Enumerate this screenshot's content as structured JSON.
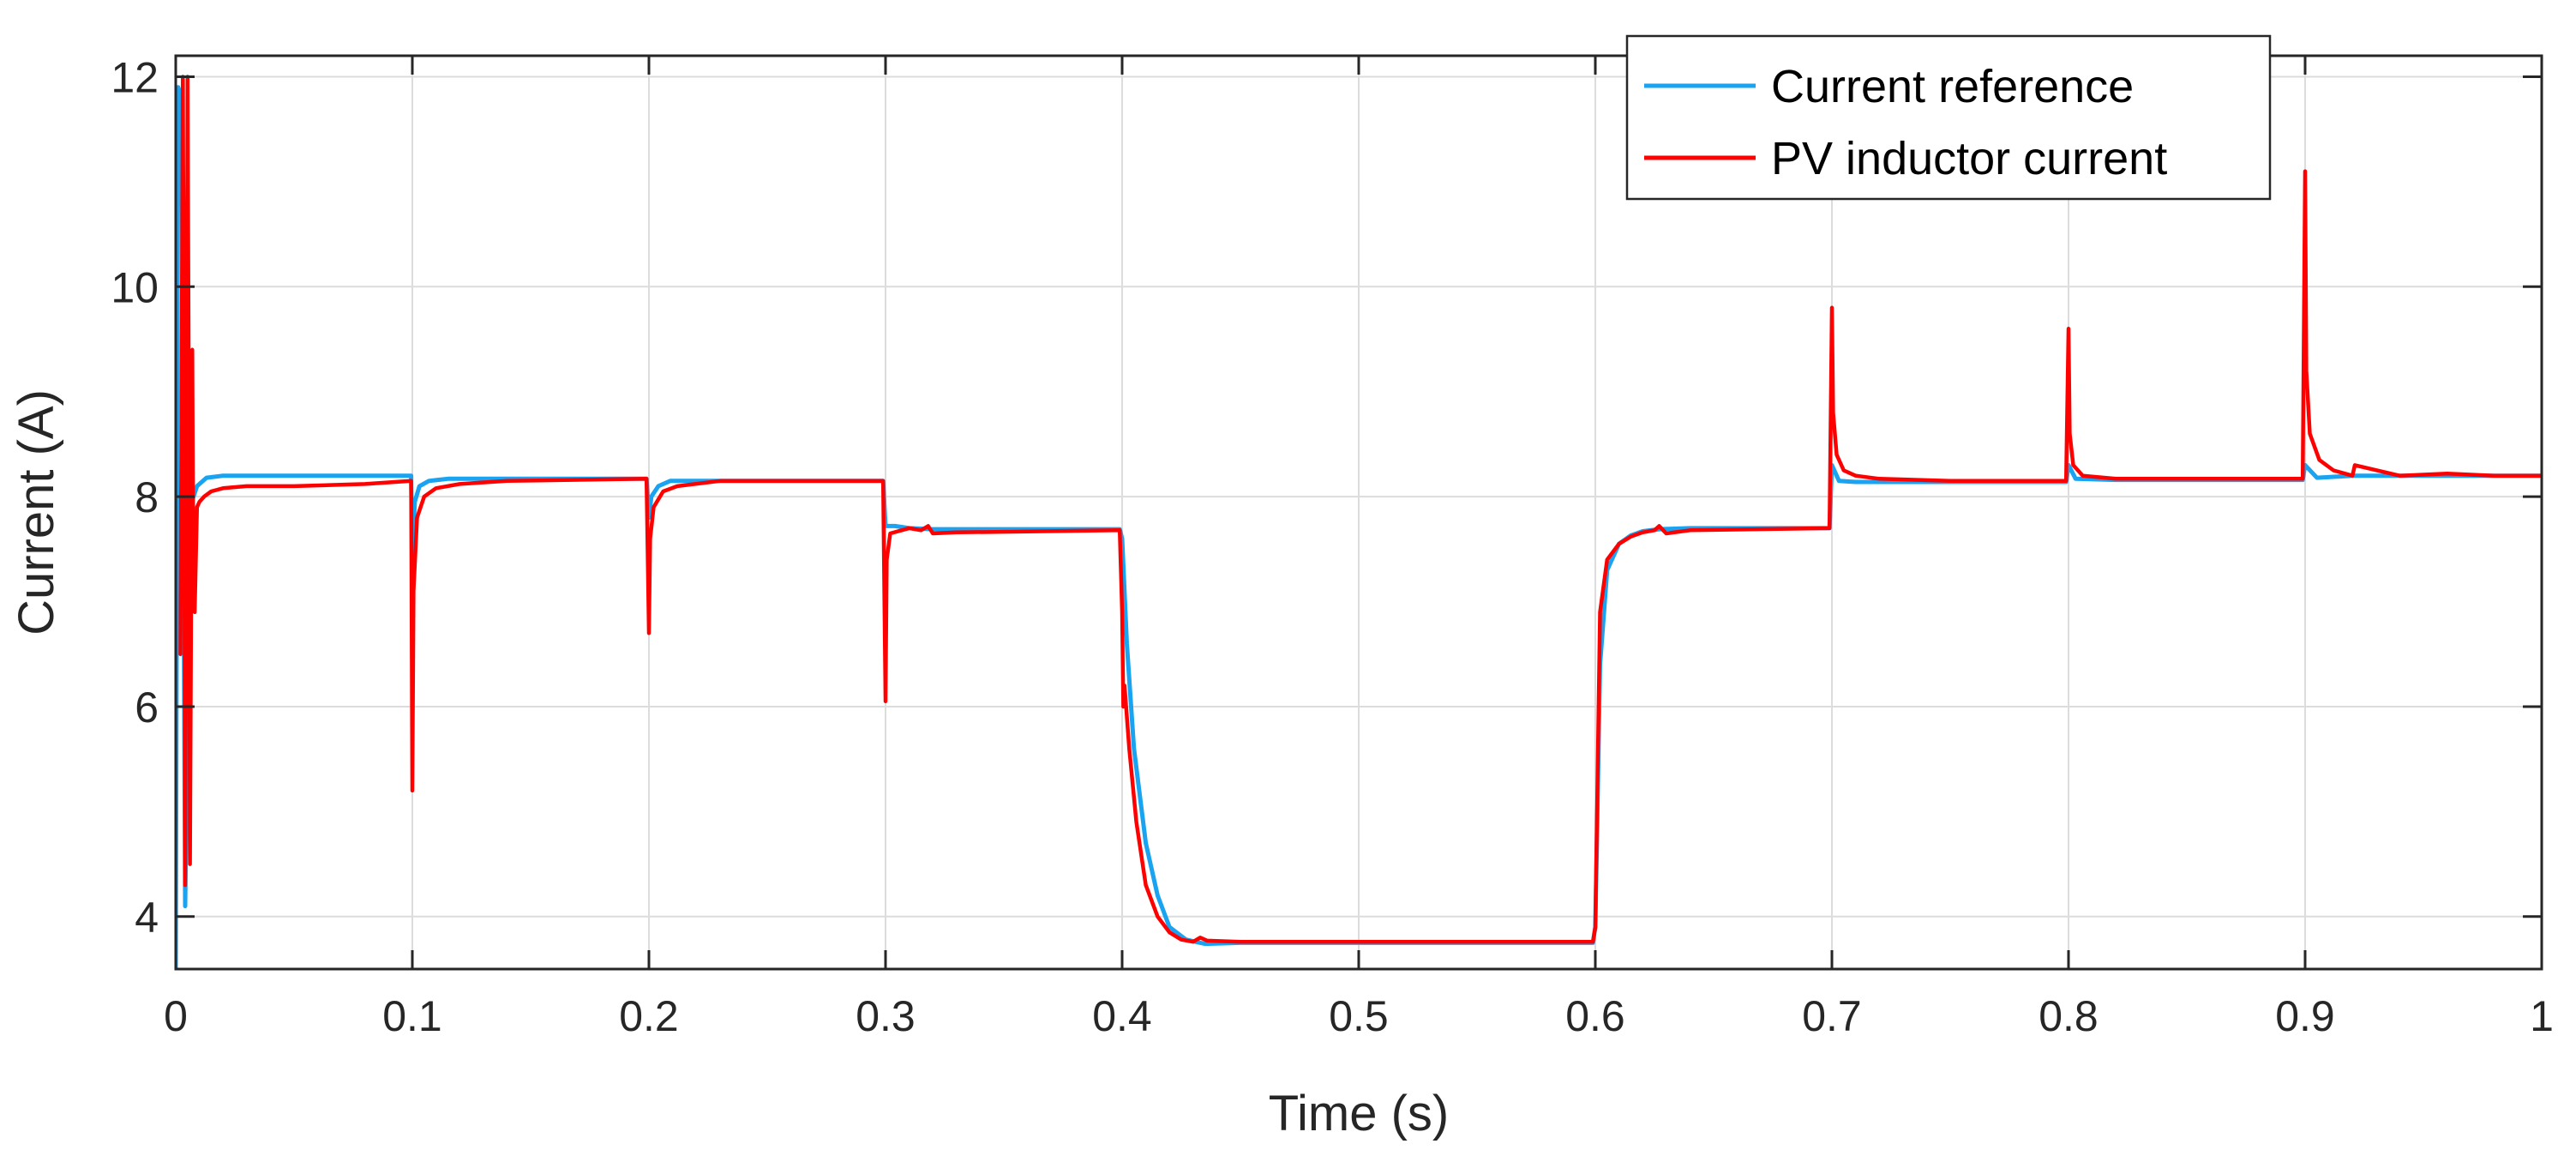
{
  "chart_data": {
    "type": "line",
    "title": "",
    "xlabel": "Time (s)",
    "ylabel": "Current (A)",
    "xlim": [
      0,
      1
    ],
    "ylim": [
      3.5,
      12.2
    ],
    "grid": true,
    "legend_position": "top-right",
    "xticks": [
      0,
      0.1,
      0.2,
      0.3,
      0.4,
      0.5,
      0.6,
      0.7,
      0.8,
      0.9,
      1
    ],
    "xtick_labels": [
      "0",
      "0.1",
      "0.2",
      "0.3",
      "0.4",
      "0.5",
      "0.6",
      "0.7",
      "0.8",
      "0.9",
      "1"
    ],
    "yticks": [
      4,
      6,
      8,
      10,
      12
    ],
    "ytick_labels": [
      "4",
      "6",
      "8",
      "10",
      "12"
    ],
    "colors": {
      "axes": "#262626",
      "grid": "#dcdcdc",
      "current_reference": "#1aa3f0",
      "pv_inductor_current": "#ff0000"
    },
    "series": [
      {
        "name": "Current reference",
        "color_key": "current_reference",
        "x": [
          0,
          0.001,
          0.0025,
          0.004,
          0.006,
          0.009,
          0.013,
          0.02,
          0.05,
          0.0995,
          0.1,
          0.101,
          0.103,
          0.107,
          0.115,
          0.13,
          0.199,
          0.2,
          0.201,
          0.204,
          0.209,
          0.22,
          0.299,
          0.3,
          0.301,
          0.304,
          0.31,
          0.32,
          0.399,
          0.4,
          0.402,
          0.405,
          0.41,
          0.415,
          0.42,
          0.427,
          0.435,
          0.45,
          0.5,
          0.599,
          0.6,
          0.602,
          0.605,
          0.61,
          0.615,
          0.62,
          0.627,
          0.64,
          0.699,
          0.7,
          0.703,
          0.71,
          0.75,
          0.799,
          0.8,
          0.803,
          0.82,
          0.899,
          0.9,
          0.905,
          0.92,
          1
        ],
        "y": [
          3.5,
          11.9,
          11.8,
          4.1,
          7.9,
          8.1,
          8.18,
          8.2,
          8.2,
          8.2,
          7.4,
          7.95,
          8.1,
          8.15,
          8.17,
          8.17,
          8.17,
          7.8,
          8.0,
          8.1,
          8.15,
          8.15,
          8.15,
          7.72,
          7.72,
          7.72,
          7.7,
          7.69,
          7.69,
          7.6,
          6.6,
          5.6,
          4.7,
          4.2,
          3.9,
          3.78,
          3.74,
          3.75,
          3.75,
          3.75,
          3.9,
          6.4,
          7.3,
          7.55,
          7.63,
          7.67,
          7.69,
          7.7,
          7.7,
          8.3,
          8.15,
          8.14,
          8.14,
          8.14,
          8.3,
          8.17,
          8.16,
          8.16,
          8.3,
          8.18,
          8.2,
          8.2
        ]
      },
      {
        "name": "PV inductor current",
        "color_key": "pv_inductor_current",
        "x": [
          0.002,
          0.003,
          0.0035,
          0.004,
          0.005,
          0.0055,
          0.006,
          0.007,
          0.0075,
          0.008,
          0.009,
          0.01,
          0.012,
          0.015,
          0.02,
          0.03,
          0.05,
          0.08,
          0.0995,
          0.1,
          0.1005,
          0.102,
          0.105,
          0.11,
          0.12,
          0.14,
          0.199,
          0.2,
          0.2005,
          0.202,
          0.206,
          0.212,
          0.23,
          0.299,
          0.3,
          0.3005,
          0.302,
          0.31,
          0.315,
          0.318,
          0.32,
          0.33,
          0.399,
          0.4,
          0.4005,
          0.401,
          0.403,
          0.406,
          0.41,
          0.415,
          0.42,
          0.425,
          0.43,
          0.433,
          0.436,
          0.45,
          0.5,
          0.599,
          0.6,
          0.602,
          0.605,
          0.61,
          0.615,
          0.62,
          0.625,
          0.627,
          0.63,
          0.64,
          0.699,
          0.7,
          0.7005,
          0.702,
          0.705,
          0.71,
          0.72,
          0.75,
          0.799,
          0.8,
          0.8005,
          0.802,
          0.806,
          0.82,
          0.899,
          0.9,
          0.9005,
          0.902,
          0.906,
          0.912,
          0.92,
          0.921,
          0.94,
          0.96,
          0.98,
          1
        ],
        "y": [
          6.5,
          12.0,
          9.0,
          4.3,
          12.0,
          9.0,
          4.5,
          9.4,
          7.0,
          6.9,
          7.9,
          7.95,
          8.0,
          8.05,
          8.08,
          8.1,
          8.1,
          8.12,
          8.15,
          5.2,
          7.1,
          7.8,
          8.0,
          8.08,
          8.12,
          8.15,
          8.17,
          6.7,
          7.6,
          7.9,
          8.05,
          8.1,
          8.15,
          8.15,
          6.05,
          7.4,
          7.65,
          7.7,
          7.68,
          7.72,
          7.65,
          7.66,
          7.68,
          6.9,
          6.0,
          6.2,
          5.6,
          4.9,
          4.3,
          4.0,
          3.85,
          3.78,
          3.76,
          3.8,
          3.77,
          3.76,
          3.76,
          3.76,
          3.9,
          6.9,
          7.4,
          7.55,
          7.62,
          7.66,
          7.68,
          7.72,
          7.65,
          7.68,
          7.7,
          9.8,
          8.8,
          8.4,
          8.25,
          8.2,
          8.17,
          8.15,
          8.15,
          9.6,
          8.6,
          8.3,
          8.2,
          8.17,
          8.17,
          11.1,
          9.2,
          8.6,
          8.35,
          8.25,
          8.2,
          8.3,
          8.2,
          8.22,
          8.2,
          8.2
        ]
      }
    ]
  }
}
